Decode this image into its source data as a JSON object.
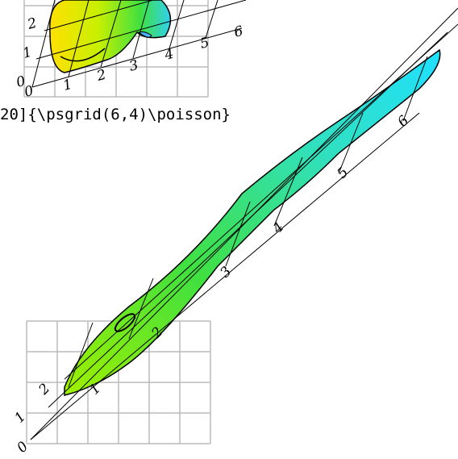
{
  "top_figure": {
    "x_labels": [
      "0",
      "1",
      "2",
      "3",
      "4",
      "5",
      "6"
    ],
    "y_labels": [
      "0",
      "1",
      "2"
    ]
  },
  "code": "20]{\\psgrid(6,4)\\poisson}",
  "bottom_figure": {
    "x_labels": [
      "1",
      "2",
      "3",
      "4",
      "5",
      "6"
    ],
    "y_labels": [
      "0",
      "1",
      "2"
    ]
  }
}
